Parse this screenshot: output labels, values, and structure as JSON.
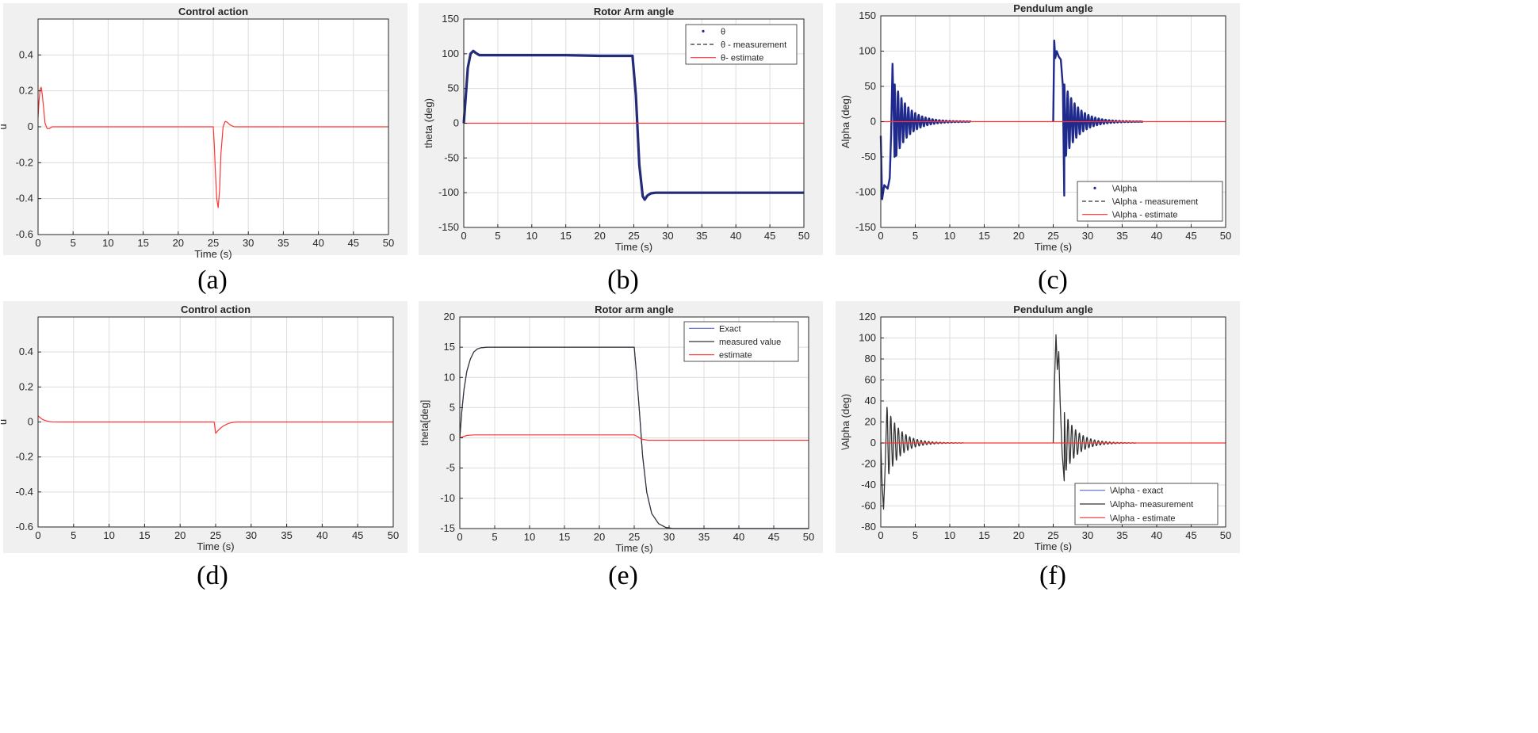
{
  "colors": {
    "red": "#ff3333",
    "blue": "#1f2a8c",
    "dark": "#333333",
    "grid": "#dcdcdc",
    "lightblue": "#5a64d0"
  },
  "chart_data": [
    {
      "id": "a",
      "type": "line",
      "caption": "(a)",
      "title": "Control action",
      "xlabel": "Time (s)",
      "ylabel": "u",
      "xlim": [
        0,
        50
      ],
      "ylim": [
        -0.6,
        0.6
      ],
      "xticks": [
        0,
        5,
        10,
        15,
        20,
        25,
        30,
        35,
        40,
        45,
        50
      ],
      "xticklabels": [
        "0",
        "5",
        "10",
        "15",
        "20",
        "25",
        "30",
        "35",
        "40",
        "45",
        "50"
      ],
      "yticks": [
        -0.6,
        -0.4,
        -0.2,
        0,
        0.2,
        0.4
      ],
      "yticklabels": [
        "-0.6",
        "-0.4",
        "-0.2",
        "0",
        "0.2",
        "0.4"
      ],
      "legend": null,
      "series": [
        {
          "name": "u",
          "color": "#ff3333",
          "style": "line",
          "x": [
            0,
            0.15,
            0.3,
            0.45,
            0.6,
            0.8,
            1.0,
            1.3,
            1.6,
            2.0,
            2.5,
            3,
            25,
            25.15,
            25.3,
            25.5,
            25.7,
            25.9,
            26.1,
            26.4,
            26.7,
            27.0,
            27.4,
            28,
            50
          ],
          "y": [
            0.05,
            0.15,
            0.21,
            0.22,
            0.18,
            0.1,
            0.02,
            -0.01,
            -0.01,
            0,
            0,
            0,
            0,
            -0.1,
            -0.25,
            -0.4,
            -0.45,
            -0.35,
            -0.15,
            0,
            0.03,
            0.025,
            0.01,
            0,
            0
          ]
        }
      ]
    },
    {
      "id": "b",
      "type": "line",
      "caption": "(b)",
      "title": "Rotor Arm angle",
      "xlabel": "Time (s)",
      "ylabel": "theta (deg)",
      "xlim": [
        0,
        50
      ],
      "ylim": [
        -150,
        150
      ],
      "xticks": [
        0,
        5,
        10,
        15,
        20,
        25,
        30,
        35,
        40,
        45,
        50
      ],
      "xticklabels": [
        "0",
        "5",
        "10",
        "15",
        "20",
        "25",
        "30",
        "35",
        "40",
        "45",
        "50"
      ],
      "yticks": [
        -150,
        -100,
        -50,
        0,
        50,
        100,
        150
      ],
      "yticklabels": [
        "-150",
        "-100",
        "-50",
        "0",
        "50",
        "100",
        "150"
      ],
      "legend": {
        "location": "top-right",
        "entries": [
          "θ",
          "θ - measurement",
          "θ- estimate"
        ]
      },
      "series": [
        {
          "name": "θ",
          "color": "#1f2a8c",
          "style": "thick",
          "x": [
            0,
            0.3,
            0.6,
            1.0,
            1.4,
            1.8,
            2.3,
            3,
            5,
            10,
            15,
            20,
            24.8,
            25.3,
            25.8,
            26.3,
            26.6,
            27.0,
            27.5,
            28.2,
            30,
            40,
            50
          ],
          "y": [
            0,
            40,
            80,
            100,
            104,
            101,
            98,
            98,
            98,
            98,
            98,
            97,
            97,
            40,
            -60,
            -105,
            -110,
            -104,
            -101,
            -100,
            -100,
            -100,
            -100
          ]
        },
        {
          "name": "θ - measurement",
          "color": "#333333",
          "style": "dash",
          "x": [
            0,
            0.3,
            0.6,
            1.0,
            1.4,
            1.8,
            2.3,
            3,
            5,
            10,
            15,
            20,
            24.8,
            25.3,
            25.8,
            26.3,
            26.6,
            27.0,
            27.5,
            28.2,
            30,
            40,
            50
          ],
          "y": [
            0,
            40,
            80,
            100,
            104,
            101,
            98,
            98,
            98,
            98,
            98,
            97,
            97,
            40,
            -60,
            -105,
            -110,
            -104,
            -101,
            -100,
            -100,
            -100,
            -100
          ]
        },
        {
          "name": "θ- estimate",
          "color": "#ff3333",
          "style": "line",
          "x": [
            0,
            50
          ],
          "y": [
            0,
            0
          ]
        }
      ]
    },
    {
      "id": "c",
      "type": "line",
      "caption": "(c)",
      "title": "Pendulum angle",
      "xlabel": "Time (s)",
      "ylabel": "Alpha (deg)",
      "xlim": [
        0,
        50
      ],
      "ylim": [
        -150,
        150
      ],
      "xticks": [
        0,
        5,
        10,
        15,
        20,
        25,
        30,
        35,
        40,
        45,
        50
      ],
      "xticklabels": [
        "0",
        "5",
        "10",
        "15",
        "20",
        "25",
        "30",
        "35",
        "40",
        "45",
        "50"
      ],
      "yticks": [
        -150,
        -100,
        -50,
        0,
        50,
        100,
        150
      ],
      "yticklabels": [
        "-150",
        "-100",
        "-50",
        "0",
        "50",
        "100",
        "150"
      ],
      "legend": {
        "location": "bottom-right",
        "entries": [
          "\\Alpha",
          "\\Alpha - measurement",
          "\\Alpha - estimate"
        ]
      },
      "series": [
        {
          "name": "\\Alpha",
          "color": "#1f2a8c",
          "style": "osc",
          "x": [
            0,
            0.2,
            0.5,
            1.0,
            1.3,
            1.5,
            1.7,
            1.8,
            2.0
          ],
          "y": [
            -20,
            -110,
            -90,
            -95,
            -80,
            -20,
            82,
            40,
            -50
          ],
          "osc": {
            "t0": 2.0,
            "t1": 13,
            "amp": 55,
            "period": 0.5,
            "tau": 2.0
          }
        },
        {
          "name": "\\Alpha",
          "color": "#1f2a8c",
          "style": "osc",
          "x": [
            25.0,
            25.15,
            25.3,
            25.5,
            25.8,
            26.1,
            26.4,
            26.6
          ],
          "y": [
            0,
            115,
            90,
            100,
            92,
            88,
            50,
            -105
          ],
          "osc": {
            "t0": 26.6,
            "t1": 38,
            "amp": 55,
            "period": 0.5,
            "tau": 2.0
          }
        },
        {
          "name": "\\Alpha - estimate",
          "color": "#ff3333",
          "style": "line",
          "x": [
            0,
            50
          ],
          "y": [
            0,
            0
          ]
        }
      ]
    },
    {
      "id": "d",
      "type": "line",
      "caption": "(d)",
      "title": "Control action",
      "xlabel": "Time (s)",
      "ylabel": "u",
      "xlim": [
        0,
        50
      ],
      "ylim": [
        -0.6,
        0.6
      ],
      "xticks": [
        0,
        5,
        10,
        15,
        20,
        25,
        30,
        35,
        40,
        45,
        50
      ],
      "xticklabels": [
        "0",
        "5",
        "10",
        "15",
        "20",
        "25",
        "30",
        "35",
        "40",
        "45",
        "50"
      ],
      "yticks": [
        -0.6,
        -0.4,
        -0.2,
        0,
        0.2,
        0.4
      ],
      "yticklabels": [
        "-0.6",
        "-0.4",
        "-0.2",
        "0",
        "0.2",
        "0.4"
      ],
      "legend": null,
      "series": [
        {
          "name": "u",
          "color": "#ff3333",
          "style": "line",
          "x": [
            0,
            0.3,
            0.6,
            1.0,
            1.5,
            2.0,
            3,
            24.8,
            25.0,
            25.3,
            25.7,
            26.2,
            26.8,
            27.5,
            28,
            50
          ],
          "y": [
            0.035,
            0.025,
            0.015,
            0.008,
            0.003,
            0.001,
            0,
            0,
            -0.065,
            -0.05,
            -0.035,
            -0.02,
            -0.008,
            -0.002,
            0,
            0
          ]
        }
      ]
    },
    {
      "id": "e",
      "type": "line",
      "caption": "(e)",
      "title": "Rotor arm angle",
      "xlabel": "Time (s)",
      "ylabel": "theta[deg]",
      "xlim": [
        0,
        50
      ],
      "ylim": [
        -15,
        20
      ],
      "xticks": [
        0,
        5,
        10,
        15,
        20,
        25,
        30,
        35,
        40,
        45,
        50
      ],
      "xticklabels": [
        "0",
        "5",
        "10",
        "15",
        "20",
        "25",
        "30",
        "35",
        "40",
        "45",
        "50"
      ],
      "yticks": [
        -15,
        -10,
        -5,
        0,
        5,
        10,
        15,
        20
      ],
      "yticklabels": [
        "-15",
        "-10",
        "-5",
        "0",
        "5",
        "10",
        "15",
        "20"
      ],
      "legend": {
        "location": "top-right",
        "entries": [
          "Exact",
          "measured value",
          "estimate"
        ]
      },
      "series": [
        {
          "name": "Exact",
          "color": "#5a64d0",
          "style": "line",
          "x": [
            0,
            0.3,
            0.6,
            1.0,
            1.5,
            2.0,
            2.5,
            3.0,
            4.0,
            5,
            25,
            25.3,
            25.7,
            26.2,
            26.8,
            27.5,
            28.5,
            29.5,
            30.5,
            32,
            50
          ],
          "y": [
            0,
            4.5,
            8,
            11,
            13,
            14.2,
            14.7,
            14.9,
            15,
            15,
            15,
            11,
            5,
            -3,
            -9,
            -12.5,
            -14.2,
            -14.8,
            -15,
            -15,
            -15
          ]
        },
        {
          "name": "measured value",
          "color": "#333333",
          "style": "line",
          "x": [
            0,
            0.3,
            0.6,
            1.0,
            1.5,
            2.0,
            2.5,
            3.0,
            4.0,
            5,
            25,
            25.3,
            25.7,
            26.2,
            26.8,
            27.5,
            28.5,
            29.5,
            30.5,
            32,
            50
          ],
          "y": [
            0,
            4.5,
            8,
            11,
            13,
            14.2,
            14.7,
            14.9,
            15,
            15,
            15,
            11,
            5,
            -3,
            -9,
            -12.5,
            -14.2,
            -14.8,
            -15,
            -15,
            -15
          ]
        },
        {
          "name": "estimate",
          "color": "#ff3333",
          "style": "line",
          "x": [
            0,
            0.5,
            1.0,
            2.0,
            3.0,
            25,
            25.5,
            26.0,
            27.0,
            28,
            50
          ],
          "y": [
            0,
            0.2,
            0.4,
            0.5,
            0.5,
            0.5,
            0.2,
            -0.2,
            -0.4,
            -0.4,
            -0.4
          ]
        }
      ]
    },
    {
      "id": "f",
      "type": "line",
      "caption": "(f)",
      "title": "Pendulum angle",
      "xlabel": "Time (s)",
      "ylabel": "\\Alpha (deg)",
      "xlim": [
        0,
        50
      ],
      "ylim": [
        -80,
        120
      ],
      "xticks": [
        0,
        5,
        10,
        15,
        20,
        25,
        30,
        35,
        40,
        45,
        50
      ],
      "xticklabels": [
        "0",
        "5",
        "10",
        "15",
        "20",
        "25",
        "30",
        "35",
        "40",
        "45",
        "50"
      ],
      "yticks": [
        -80,
        -60,
        -40,
        -20,
        0,
        20,
        40,
        60,
        80,
        100,
        120
      ],
      "yticklabels": [
        "-80",
        "-60",
        "-40",
        "-20",
        "0",
        "20",
        "40",
        "60",
        "80",
        "100",
        "120"
      ],
      "legend": {
        "location": "bottom-right",
        "entries": [
          "\\Alpha - exact",
          "\\Alpha- measurement",
          "\\Alpha - estimate"
        ]
      },
      "series": [
        {
          "name": "\\Alpha- measurement",
          "color": "#333333",
          "style": "osc",
          "x": [
            0,
            0.2,
            0.4,
            0.6,
            0.9
          ],
          "y": [
            0,
            -40,
            -63,
            -30,
            34
          ],
          "osc": {
            "t0": 0.9,
            "t1": 12,
            "amp": 34,
            "period": 0.55,
            "tau": 1.9
          }
        },
        {
          "name": "\\Alpha- measurement",
          "color": "#333333",
          "style": "osc",
          "x": [
            25.0,
            25.2,
            25.4,
            25.6,
            25.8,
            26.0,
            26.3,
            26.6
          ],
          "y": [
            0,
            60,
            103,
            70,
            87,
            40,
            -10,
            -36
          ],
          "osc": {
            "t0": 26.6,
            "t1": 37,
            "amp": 30,
            "period": 0.55,
            "tau": 1.9
          }
        },
        {
          "name": "\\Alpha - estimate",
          "color": "#ff3333",
          "style": "line",
          "x": [
            0,
            50
          ],
          "y": [
            0,
            0
          ]
        }
      ]
    }
  ]
}
